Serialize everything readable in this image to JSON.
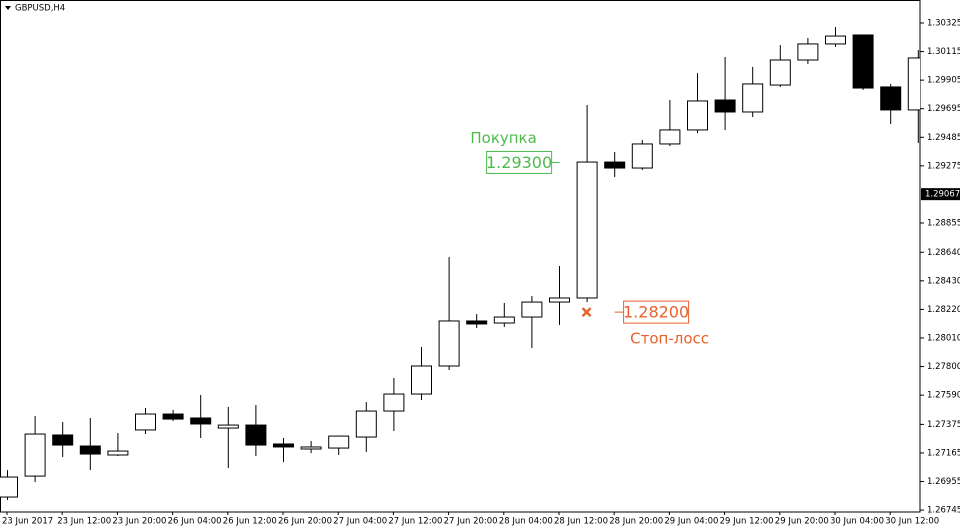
{
  "chart_data": {
    "type": "candlestick",
    "title": "GBPUSD,H4",
    "categories": [
      "23 Jun 2017",
      null,
      "23 Jun 12:00",
      null,
      "23 Jun 20:00",
      null,
      "26 Jun 04:00",
      null,
      "26 Jun 12:00",
      null,
      "26 Jun 20:00",
      null,
      "27 Jun 04:00",
      null,
      "27 Jun 12:00",
      null,
      "27 Jun 20:00",
      null,
      "28 Jun 04:00",
      null,
      "28 Jun 12:00",
      null,
      "28 Jun 20:00",
      null,
      "29 Jun 04:00",
      null,
      "29 Jun 12:00",
      null,
      "29 Jun 20:00",
      null,
      "30 Jun 04:00",
      null,
      "30 Jun 12:00",
      null
    ],
    "open": [
      1.26841,
      1.26995,
      1.27297,
      1.27216,
      1.2715,
      1.27334,
      1.27451,
      1.27422,
      1.27348,
      1.2737,
      1.27231,
      1.27194,
      1.27201,
      1.27282,
      1.27473,
      1.27598,
      1.27804,
      1.28135,
      1.2812,
      1.28164,
      1.28274,
      1.28304,
      1.29303,
      1.29259,
      1.29436,
      1.29539,
      1.29759,
      1.29671,
      1.29869,
      1.30053,
      1.30171,
      1.30237,
      1.29855,
      1.29686
    ],
    "high": [
      1.27039,
      1.27436,
      1.27392,
      1.27422,
      1.27311,
      1.27495,
      1.27481,
      1.27591,
      1.27503,
      1.27517,
      1.27275,
      1.27253,
      1.27289,
      1.27539,
      1.27716,
      1.27944,
      1.28605,
      1.28186,
      1.28267,
      1.28318,
      1.28539,
      1.29722,
      1.29377,
      1.29465,
      1.29759,
      1.29957,
      1.30075,
      1.30002,
      1.30163,
      1.30215,
      1.30296,
      1.30237,
      1.29877,
      1.30127
    ],
    "low": [
      1.26819,
      1.26951,
      1.27135,
      1.27039,
      1.27142,
      1.27304,
      1.274,
      1.27275,
      1.27054,
      1.27142,
      1.27098,
      1.27164,
      1.2715,
      1.27172,
      1.27326,
      1.27554,
      1.27775,
      1.28083,
      1.28091,
      1.27936,
      1.28105,
      1.28274,
      1.29193,
      1.29245,
      1.29421,
      1.29516,
      1.29539,
      1.29634,
      1.29855,
      1.30024,
      1.30149,
      1.29833,
      1.29583,
      1.29443
    ],
    "close": [
      1.26988,
      1.27304,
      1.27223,
      1.27157,
      1.27179,
      1.27451,
      1.27414,
      1.27378,
      1.2737,
      1.27223,
      1.27209,
      1.27209,
      1.27289,
      1.27473,
      1.27598,
      1.27804,
      1.28135,
      1.28113,
      1.28164,
      1.28274,
      1.28304,
      1.29303,
      1.29259,
      1.29436,
      1.29539,
      1.29752,
      1.29671,
      1.29877,
      1.30053,
      1.30171,
      1.30229,
      1.29847,
      1.29686,
      1.30068
    ],
    "up_color": "#ffffff",
    "down_color": "#000000",
    "ylim": [
      1.26731,
      1.30494
    ],
    "yticks": [
      1.30325,
      1.30115,
      1.29905,
      1.29695,
      1.29485,
      1.29275,
      1.28855,
      {
        "value": 1.2864,
        "label": "1.28640"
      },
      {
        "value": 1.2843,
        "label": "1.28430"
      },
      {
        "value": 1.2822,
        "label": "1.28220"
      },
      {
        "value": 1.2801,
        "label": "1.28010"
      },
      {
        "value": 1.278,
        "label": "1.27800"
      },
      {
        "value": 1.2759,
        "label": "1.27590"
      },
      1.27375,
      1.27165,
      1.26955,
      1.26745
    ],
    "current_price": 1.29067,
    "buy": {
      "label": "Покупка",
      "price": 1.293,
      "price_label": "1.29300",
      "color": "#4cbb4c"
    },
    "stop_loss": {
      "label": "Стоп-лосс",
      "price": 1.282,
      "price_label": "1.28200",
      "color": "#e8602c"
    }
  }
}
